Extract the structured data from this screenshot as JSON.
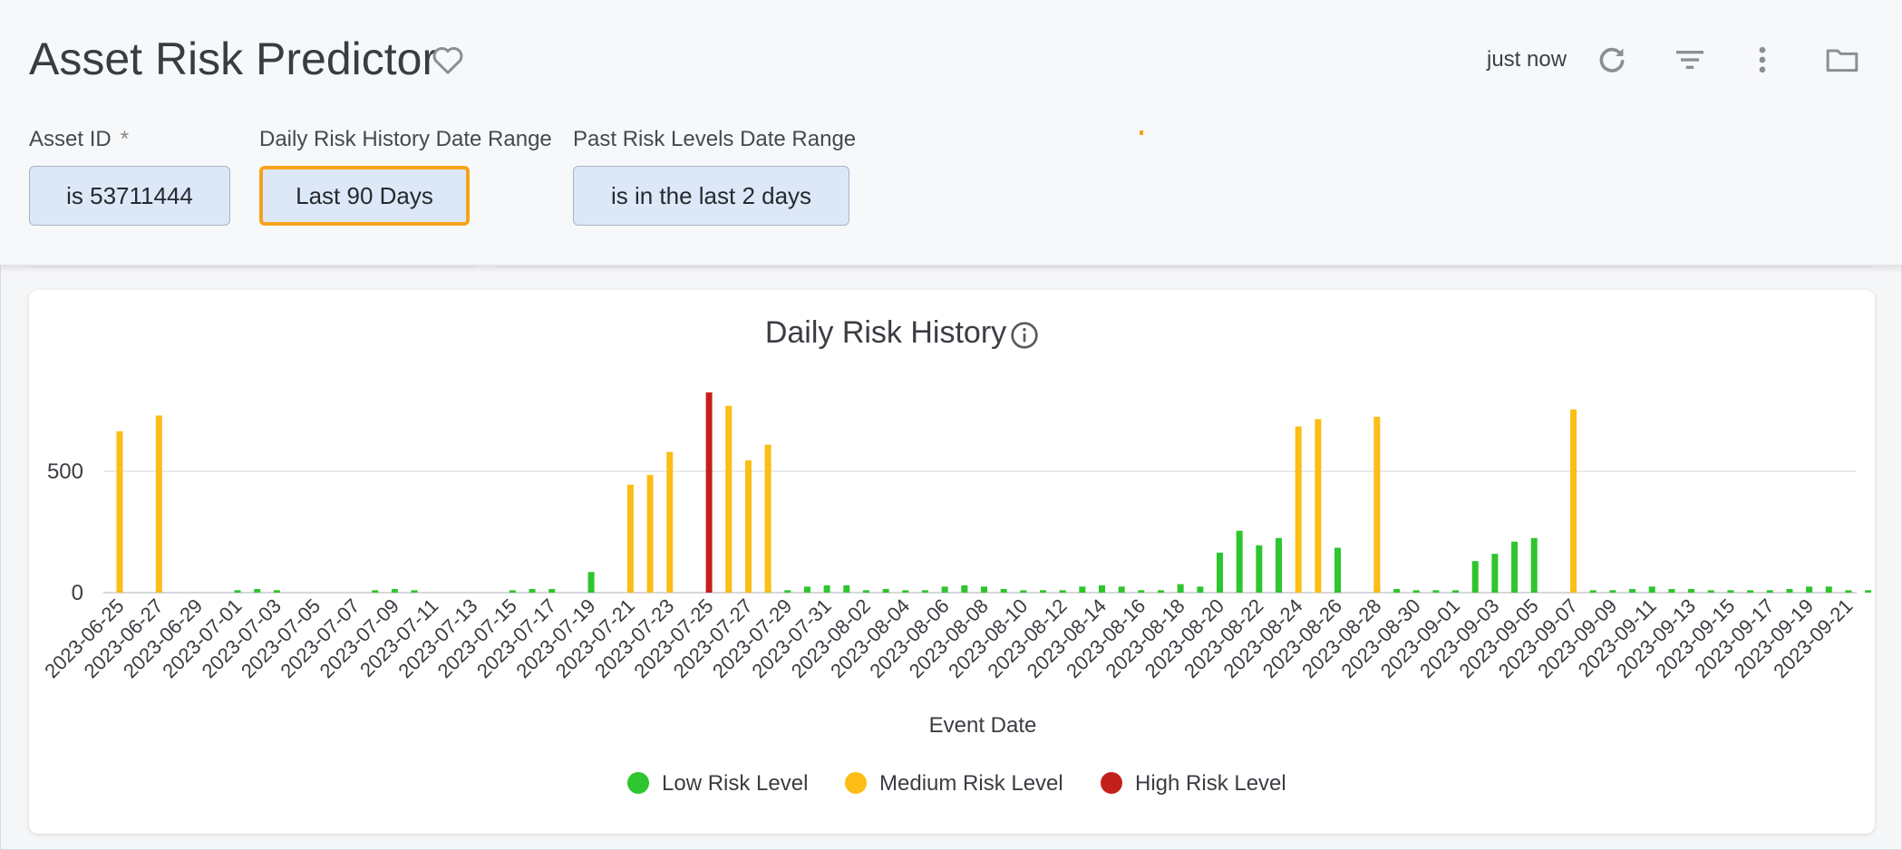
{
  "header": {
    "title": "Asset Risk Predictor",
    "updated": "just now",
    "icons": [
      "heart-outline-icon",
      "refresh-icon",
      "filter-icon",
      "more-vert-icon",
      "folder-icon"
    ]
  },
  "filters": [
    {
      "label": "Asset ID",
      "required_mark": "*",
      "value": "is 53711444"
    },
    {
      "label": "Daily Risk History Date Range",
      "value": "Last 90 Days"
    },
    {
      "label": "Past Risk Levels Date Range",
      "value": "is in the last 2 days"
    }
  ],
  "colors": {
    "low": "#2ec52e",
    "medium": "#fbbd16",
    "high": "#c4201b",
    "accent": "#f5a31a",
    "filter_bg": "#dce8f8"
  },
  "chart_data": {
    "type": "bar",
    "title": "Daily Risk History",
    "xlabel": "Event Date",
    "ylabel": "",
    "ylim": [
      0,
      850
    ],
    "yticks": [
      0,
      500
    ],
    "grid": true,
    "legend_position": "bottom",
    "x": [
      "2023-06-25",
      "2023-06-26",
      "2023-06-27",
      "2023-06-28",
      "2023-06-29",
      "2023-06-30",
      "2023-07-01",
      "2023-07-02",
      "2023-07-03",
      "2023-07-04",
      "2023-07-05",
      "2023-07-06",
      "2023-07-07",
      "2023-07-08",
      "2023-07-09",
      "2023-07-10",
      "2023-07-11",
      "2023-07-12",
      "2023-07-13",
      "2023-07-14",
      "2023-07-15",
      "2023-07-16",
      "2023-07-17",
      "2023-07-18",
      "2023-07-19",
      "2023-07-20",
      "2023-07-21",
      "2023-07-22",
      "2023-07-23",
      "2023-07-24",
      "2023-07-25",
      "2023-07-26",
      "2023-07-27",
      "2023-07-28",
      "2023-07-29",
      "2023-07-30",
      "2023-07-31",
      "2023-08-01",
      "2023-08-02",
      "2023-08-03",
      "2023-08-04",
      "2023-08-05",
      "2023-08-06",
      "2023-08-07",
      "2023-08-08",
      "2023-08-09",
      "2023-08-10",
      "2023-08-11",
      "2023-08-12",
      "2023-08-13",
      "2023-08-14",
      "2023-08-15",
      "2023-08-16",
      "2023-08-17",
      "2023-08-18",
      "2023-08-19",
      "2023-08-20",
      "2023-08-21",
      "2023-08-22",
      "2023-08-23",
      "2023-08-24",
      "2023-08-25",
      "2023-08-26",
      "2023-08-27",
      "2023-08-28",
      "2023-08-29",
      "2023-08-30",
      "2023-08-31",
      "2023-09-01",
      "2023-09-02",
      "2023-09-03",
      "2023-09-04",
      "2023-09-05",
      "2023-09-06",
      "2023-09-07",
      "2023-09-08",
      "2023-09-09",
      "2023-09-10",
      "2023-09-11",
      "2023-09-12",
      "2023-09-13",
      "2023-09-14",
      "2023-09-15",
      "2023-09-16",
      "2023-09-17",
      "2023-09-18",
      "2023-09-19",
      "2023-09-20",
      "2023-09-21",
      "2023-09-22"
    ],
    "x_tick_labels": [
      "2023-06-25",
      "2023-06-27",
      "2023-06-29",
      "2023-07-01",
      "2023-07-03",
      "2023-07-05",
      "2023-07-07",
      "2023-07-09",
      "2023-07-11",
      "2023-07-13",
      "2023-07-15",
      "2023-07-17",
      "2023-07-19",
      "2023-07-21",
      "2023-07-23",
      "2023-07-25",
      "2023-07-27",
      "2023-07-29",
      "2023-07-31",
      "2023-08-02",
      "2023-08-04",
      "2023-08-06",
      "2023-08-08",
      "2023-08-10",
      "2023-08-12",
      "2023-08-14",
      "2023-08-16",
      "2023-08-18",
      "2023-08-20",
      "2023-08-22",
      "2023-08-24",
      "2023-08-26",
      "2023-08-28",
      "2023-08-30",
      "2023-09-01",
      "2023-09-03",
      "2023-09-05",
      "2023-09-07",
      "2023-09-09",
      "2023-09-11",
      "2023-09-13",
      "2023-09-15",
      "2023-09-17",
      "2023-09-19",
      "2023-09-21"
    ],
    "series": [
      {
        "name": "Low Risk Level",
        "color": "#2ec52e",
        "values": [
          0,
          0,
          0,
          0,
          0,
          0,
          10,
          15,
          10,
          0,
          0,
          0,
          0,
          10,
          15,
          10,
          0,
          0,
          0,
          0,
          10,
          15,
          15,
          0,
          85,
          0,
          0,
          0,
          0,
          0,
          0,
          0,
          0,
          10,
          10,
          25,
          30,
          30,
          10,
          15,
          10,
          10,
          25,
          30,
          25,
          15,
          10,
          10,
          10,
          25,
          30,
          25,
          10,
          10,
          35,
          25,
          165,
          255,
          195,
          225,
          0,
          0,
          185,
          0,
          25,
          15,
          10,
          10,
          10,
          130,
          160,
          210,
          225,
          0,
          10,
          10,
          10,
          15,
          25,
          15,
          15,
          10,
          10,
          10,
          10,
          15,
          25,
          25,
          10,
          10
        ]
      },
      {
        "name": "Medium Risk Level",
        "color": "#fbbd16",
        "values": [
          665,
          0,
          730,
          0,
          0,
          0,
          0,
          0,
          0,
          0,
          0,
          0,
          0,
          0,
          0,
          0,
          0,
          0,
          0,
          0,
          0,
          0,
          0,
          0,
          0,
          0,
          445,
          485,
          580,
          0,
          0,
          770,
          545,
          610,
          0,
          0,
          0,
          0,
          0,
          0,
          0,
          0,
          0,
          0,
          0,
          0,
          0,
          0,
          0,
          0,
          0,
          0,
          0,
          0,
          0,
          0,
          0,
          0,
          0,
          0,
          685,
          715,
          0,
          0,
          725,
          0,
          0,
          0,
          0,
          0,
          0,
          0,
          0,
          0,
          755,
          0,
          0,
          0,
          0,
          0,
          0,
          0,
          0,
          0,
          0,
          0,
          0,
          0,
          0,
          0
        ]
      },
      {
        "name": "High Risk Level",
        "color": "#c4201b",
        "values": [
          0,
          0,
          0,
          0,
          0,
          0,
          0,
          0,
          0,
          0,
          0,
          0,
          0,
          0,
          0,
          0,
          0,
          0,
          0,
          0,
          0,
          0,
          0,
          0,
          0,
          0,
          0,
          0,
          0,
          0,
          825,
          0,
          0,
          0,
          0,
          0,
          0,
          0,
          0,
          0,
          0,
          0,
          0,
          0,
          0,
          0,
          0,
          0,
          0,
          0,
          0,
          0,
          0,
          0,
          0,
          0,
          0,
          0,
          0,
          0,
          0,
          0,
          0,
          0,
          0,
          0,
          0,
          0,
          0,
          0,
          0,
          0,
          0,
          0,
          0,
          0,
          0,
          0,
          0,
          0,
          0,
          0,
          0,
          0,
          0,
          0,
          0,
          0,
          0,
          0
        ]
      }
    ]
  }
}
